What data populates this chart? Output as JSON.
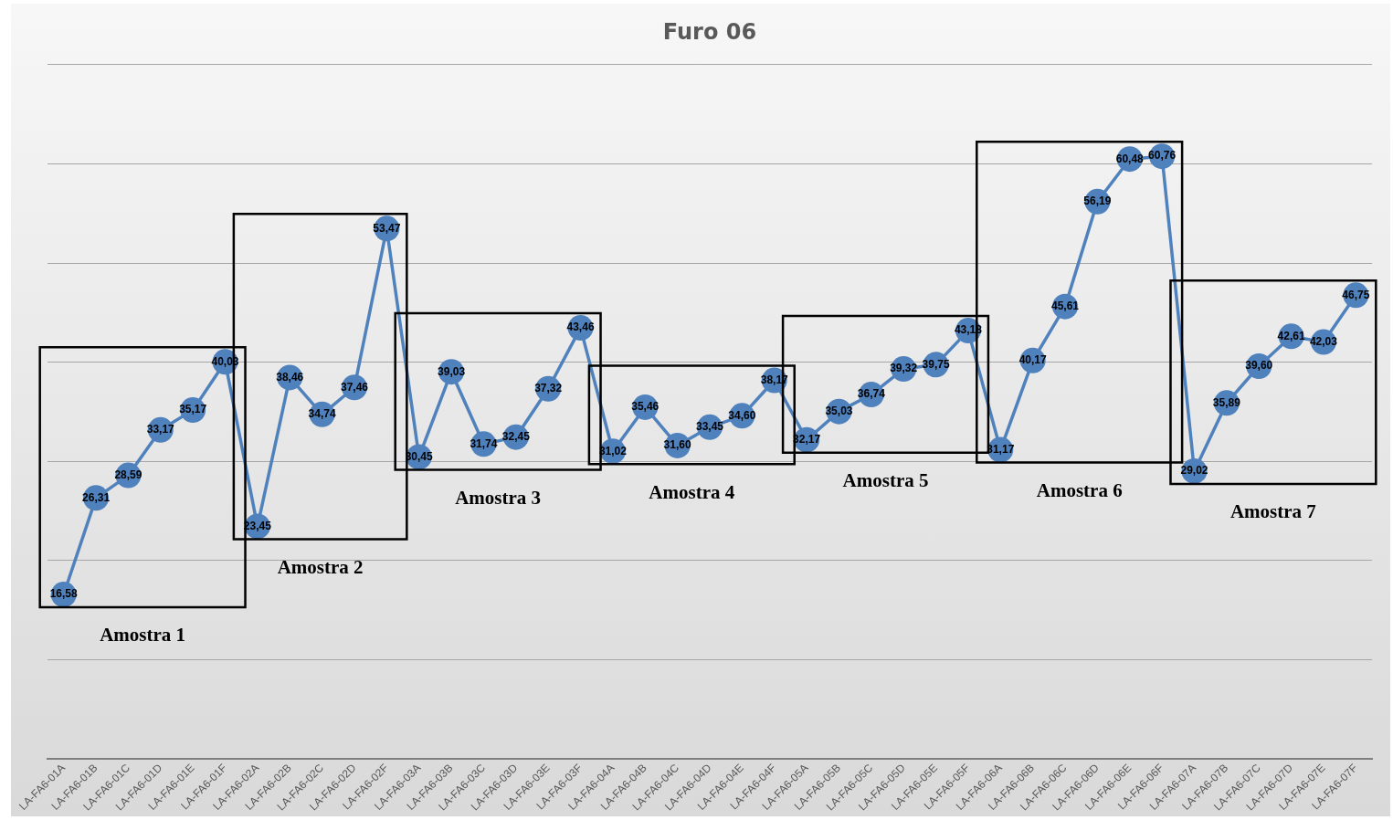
{
  "chart_data": {
    "type": "line",
    "title": "Furo 06",
    "categories": [
      "LA-FA6-01A",
      "LA-FA6-01B",
      "LA-FA6-01C",
      "LA-FA6-01D",
      "LA-FA6-01E",
      "LA-FA6-01F",
      "LA-FA6-02A",
      "LA-FA6-02B",
      "LA-FA6-02C",
      "LA-FA6-02D",
      "LA-FA6-02F",
      "LA-FA6-03A",
      "LA-FA6-03B",
      "LA-FA6-03C",
      "LA-FA6-03D",
      "LA-FA6-03E",
      "LA-FA6-03F",
      "LA-FA6-04A",
      "LA-FA6-04B",
      "LA-FA6-04C",
      "LA-FA6-04D",
      "LA-FA6-04E",
      "LA-FA6-04F",
      "LA-FA6-05A",
      "LA-FA6-05B",
      "LA-FA6-05C",
      "LA-FA6-05D",
      "LA-FA6-05E",
      "LA-FA6-05F",
      "LA-FA6-06A",
      "LA-FA6-06B",
      "LA-FA6-06C",
      "LA-FA6-06D",
      "LA-FA6-06E",
      "LA-FA6-06F",
      "LA-FA6-07A",
      "LA-FA6-07B",
      "LA-FA6-07C",
      "LA-FA6-07D",
      "LA-FA6-07E",
      "LA-FA6-07F"
    ],
    "series": [
      {
        "color": "#4f81bd",
        "values": [
          16.58,
          26.31,
          28.59,
          33.17,
          35.17,
          40.03,
          23.45,
          38.46,
          34.74,
          37.46,
          53.47,
          30.45,
          39.03,
          31.74,
          32.45,
          37.32,
          43.46,
          31.02,
          35.46,
          31.6,
          33.45,
          34.6,
          38.17,
          32.17,
          35.03,
          36.74,
          39.32,
          39.75,
          43.18,
          31.17,
          40.17,
          45.61,
          56.19,
          60.48,
          60.76,
          29.02,
          35.89,
          39.6,
          42.61,
          42.03,
          46.75
        ],
        "value_labels": [
          "16,58",
          "26,31",
          "28,59",
          "33,17",
          "35,17",
          "40,03",
          "23,45",
          "38,46",
          "34,74",
          "37,46",
          "53,47",
          "30,45",
          "39,03",
          "31,74",
          "32,45",
          "37,32",
          "43,46",
          "31,02",
          "35,46",
          "31,60",
          "33,45",
          "34,60",
          "38,17",
          "32,17",
          "35,03",
          "36,74",
          "39,32",
          "39,75",
          "43,18",
          "31,17",
          "40,17",
          "45,61",
          "56,19",
          "60,48",
          "60,76",
          "29,02",
          "35,89",
          "39,60",
          "42,61",
          "42,03",
          "46,75"
        ]
      }
    ],
    "ylim": [
      0,
      70
    ],
    "yticks": [
      {
        "value": 0,
        "label": null
      },
      {
        "value": 10,
        "label": null
      },
      {
        "value": 20,
        "label": null
      },
      {
        "value": 30,
        "label": null
      },
      {
        "value": 40,
        "label": null
      },
      {
        "value": 50,
        "label": null
      },
      {
        "value": 60,
        "label": null
      },
      {
        "value": 70,
        "label": null
      }
    ],
    "tick_labels": "x",
    "grid": "y",
    "legend": false,
    "marker": "circle",
    "line_style": "solid",
    "annotations": [
      "Amostra 1",
      "Amostra 2",
      "Amostra 3",
      "Amostra 4",
      "Amostra 5",
      "Amostra 6",
      "Amostra 7"
    ]
  }
}
